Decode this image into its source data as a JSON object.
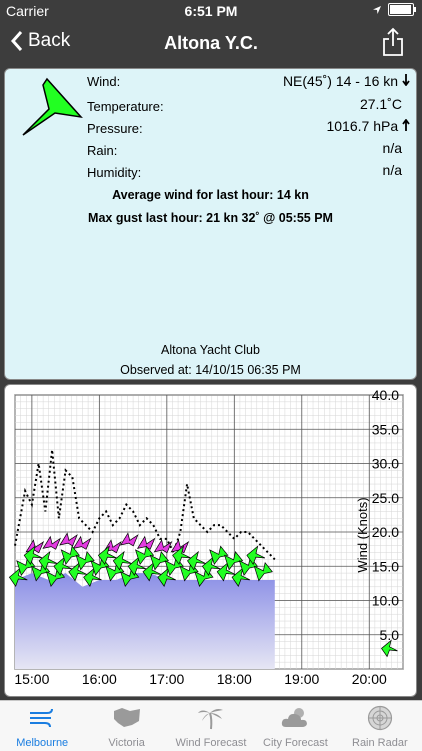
{
  "status": {
    "carrier": "Carrier",
    "time": "6:51 PM"
  },
  "nav": {
    "back_label": "Back",
    "title": "Altona Y.C."
  },
  "obs": {
    "wind_label": "Wind:",
    "wind_value": "NE(45˚) 14 - 16 kn",
    "temp_label": "Temperature:",
    "temp_value": "27.1˚C",
    "pressure_label": "Pressure:",
    "pressure_value": "1016.7  hPa",
    "rain_label": "Rain:",
    "rain_value": "n/a",
    "humidity_label": "Humidity:",
    "humidity_value": "n/a",
    "avg_wind": "Average wind for last hour: 14 kn",
    "max_gust": "Max gust last hour: 21 kn 32˚ @ 05:55 PM",
    "station": "Altona Yacht Club",
    "observed": "Observed at: 14/10/15 06:35 PM"
  },
  "colors": {
    "accent": "#1a7de0",
    "panel_bg": "#ddf4f8",
    "arrow_green": "#22ff22",
    "gust_magenta": "#e23be0",
    "area_blue": "#8a8ee6"
  },
  "chart_data": {
    "type": "line",
    "ylabel": "Wind (Knots)",
    "xticks": [
      "15:00",
      "16:00",
      "17:00",
      "18:00",
      "19:00",
      "20:00"
    ],
    "yticks": [
      "5.0",
      "10.0",
      "15.0",
      "20.0",
      "25.0",
      "30.0",
      "35.0",
      "40.0"
    ],
    "ylim": [
      0,
      40
    ],
    "xlim": [
      14.75,
      20.5
    ],
    "gust_series": {
      "x": [
        14.75,
        14.9,
        15.0,
        15.1,
        15.2,
        15.3,
        15.4,
        15.5,
        15.6,
        15.7,
        15.8,
        15.9,
        16.0,
        16.1,
        16.2,
        16.3,
        16.4,
        16.5,
        16.6,
        16.7,
        16.8,
        16.9,
        17.0,
        17.1,
        17.2,
        17.3,
        17.4,
        17.5,
        17.6,
        17.7,
        17.8,
        17.9,
        18.0,
        18.1,
        18.2,
        18.3,
        18.4,
        18.5,
        18.6
      ],
      "y": [
        18,
        26,
        24,
        30,
        23,
        32,
        22,
        29,
        28,
        22,
        21,
        20,
        22,
        23,
        21,
        22,
        24,
        23,
        21,
        22,
        21,
        19,
        19,
        17,
        20,
        27,
        22,
        21,
        20,
        21,
        21,
        20,
        19,
        20,
        20,
        19,
        18,
        17,
        16
      ]
    },
    "wind_series": {
      "x": [
        14.75,
        15.0,
        15.25,
        15.5,
        15.75,
        16.0,
        16.25,
        16.5,
        16.75,
        17.0,
        17.25,
        17.5,
        17.75,
        18.0,
        18.25,
        18.5,
        18.6
      ],
      "y": [
        13,
        14,
        13,
        14,
        12,
        13,
        13,
        14,
        14,
        13,
        13,
        13,
        13,
        13,
        13,
        13,
        13
      ]
    }
  },
  "tabs": [
    {
      "label": "Melbourne",
      "icon": "wind-lines-icon",
      "active": true
    },
    {
      "label": "Victoria",
      "icon": "victoria-map-icon",
      "active": false
    },
    {
      "label": "Wind Forecast",
      "icon": "palm-tree-icon",
      "active": false
    },
    {
      "label": "City Forecast",
      "icon": "cloud-sun-icon",
      "active": false
    },
    {
      "label": "Rain Radar",
      "icon": "radar-icon",
      "active": false
    }
  ]
}
